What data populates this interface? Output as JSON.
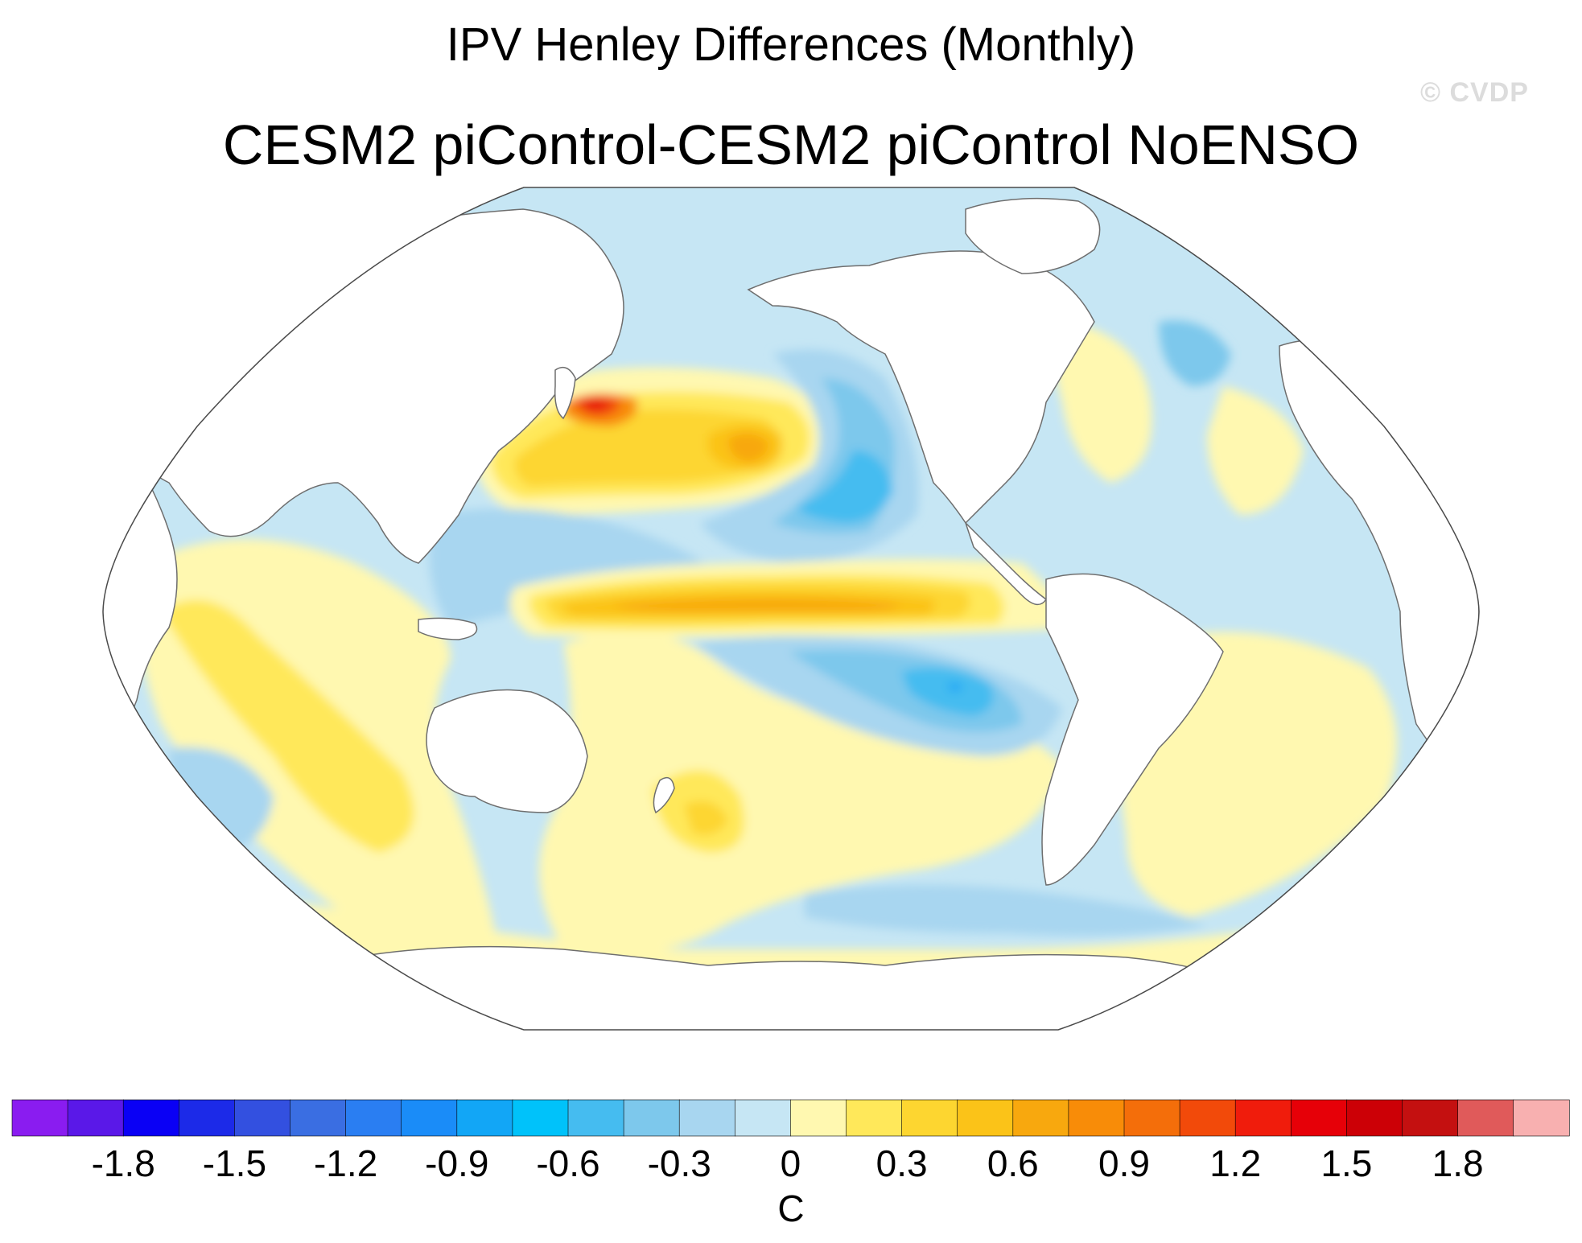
{
  "title": "IPV Henley Differences (Monthly)",
  "subtitle": "CESM2 piControl-CESM2 piControl NoENSO",
  "watermark": "© CVDP",
  "map": {
    "projection": "Robinson",
    "center_longitude": "Pacific-centered",
    "variable": "SST difference",
    "features": [
      {
        "name": "kuroshio-warm-anomaly",
        "value": 1.5
      },
      {
        "name": "north-pacific-warm-center",
        "value": 0.7
      },
      {
        "name": "equatorial-pacific-warm-band",
        "value": 0.8
      },
      {
        "name": "northeast-pacific-cool-anomaly",
        "value": -0.6
      },
      {
        "name": "southeast-pacific-cool-anomaly",
        "value": -0.6
      },
      {
        "name": "western-pacific-cool-region",
        "value": -0.3
      },
      {
        "name": "south-pacific-warm-anomaly",
        "value": 0.4
      },
      {
        "name": "indian-ocean-warm-anomaly",
        "value": 0.3
      },
      {
        "name": "southern-ocean-cool-band",
        "value": -0.3
      },
      {
        "name": "north-atlantic-cool-anomaly",
        "value": -0.3
      }
    ]
  },
  "colorbar": {
    "unit": "C",
    "tick_labels": [
      "-1.8",
      "-1.5",
      "-1.2",
      "-0.9",
      "-0.6",
      "-0.3",
      "0",
      "0.3",
      "0.6",
      "0.9",
      "1.2",
      "1.5",
      "1.8"
    ],
    "colors": [
      "#8a1cf0",
      "#5a18e8",
      "#0a00f5",
      "#1c2ae8",
      "#3350e0",
      "#3a6ee2",
      "#2a7ef2",
      "#1a8cf8",
      "#12a6f6",
      "#00c2fa",
      "#45bcf0",
      "#7dc8ec",
      "#a8d6f0",
      "#c6e6f4",
      "#fff8b0",
      "#ffe85a",
      "#fdd630",
      "#fbc318",
      "#f8a80e",
      "#f88c08",
      "#f46e0a",
      "#f24a0a",
      "#f01c0c",
      "#e60008",
      "#cc0006",
      "#c41010",
      "#e05a5a",
      "#f8b0b0"
    ]
  }
}
